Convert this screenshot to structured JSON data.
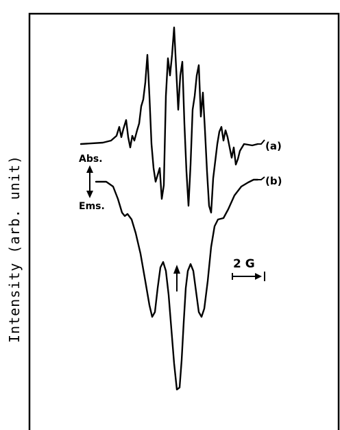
{
  "chart_data": {
    "type": "line",
    "title": "",
    "xlabel": "",
    "ylabel": "Intensity (arb. unit)",
    "grid": false,
    "series": [
      {
        "name": "(a)"
      },
      {
        "name": "(b)"
      }
    ],
    "annotations": {
      "abs": "Abs.",
      "ems": "Ems.",
      "scale_bar": "2 G"
    }
  }
}
